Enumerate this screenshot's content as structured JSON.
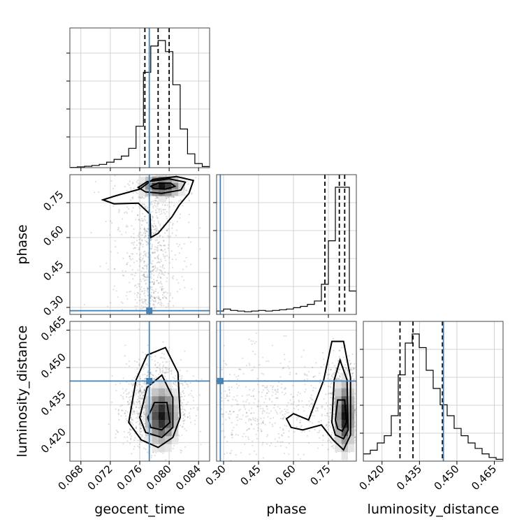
{
  "chart_data": {
    "type": "corner",
    "parameters": [
      "geocent_time",
      "phase",
      "luminosity_distance"
    ],
    "truths": {
      "geocent_time": 0.0773,
      "phase": 0.286,
      "luminosity_distance": 0.4446
    },
    "truth_color": "#4682b4",
    "grid": true,
    "axes": {
      "geocent_time": {
        "range": [
          0.0665,
          0.0855
        ],
        "ticks": [
          0.068,
          0.072,
          0.076,
          0.08,
          0.084
        ],
        "tick_labels": [
          "0.068",
          "0.072",
          "0.076",
          "0.080",
          "0.084"
        ]
      },
      "phase": {
        "range": [
          0.27,
          0.87
        ],
        "ticks": [
          0.3,
          0.45,
          0.6,
          0.75
        ],
        "tick_labels": [
          "0.30",
          "0.45",
          "0.60",
          "0.75"
        ]
      },
      "luminosity_distance": {
        "range": [
          0.4125,
          0.4685
        ],
        "ticks": [
          0.42,
          0.435,
          0.45,
          0.465
        ],
        "tick_labels": [
          "0.420",
          "0.435",
          "0.450",
          "0.465"
        ]
      }
    },
    "marginals": [
      {
        "parameter": "geocent_time",
        "bin_edges": [
          0.0665,
          0.0675,
          0.0685,
          0.0695,
          0.0705,
          0.0715,
          0.0725,
          0.0735,
          0.0745,
          0.0755,
          0.0765,
          0.0775,
          0.0785,
          0.0795,
          0.0805,
          0.0815,
          0.0825,
          0.0835,
          0.0845,
          0.0855
        ],
        "counts": [
          1,
          3,
          5,
          8,
          12,
          20,
          30,
          42,
          70,
          150,
          345,
          440,
          460,
          420,
          300,
          140,
          50,
          15,
          4
        ],
        "quantiles": [
          0.0767,
          0.0785,
          0.08
        ]
      },
      {
        "parameter": "phase",
        "bin_edges": [
          0.27,
          0.3,
          0.33,
          0.36,
          0.39,
          0.42,
          0.45,
          0.48,
          0.51,
          0.54,
          0.57,
          0.6,
          0.63,
          0.66,
          0.69,
          0.72,
          0.75,
          0.78,
          0.81,
          0.84,
          0.87
        ],
        "counts": [
          5,
          8,
          6,
          5,
          4,
          5,
          6,
          5,
          6,
          7,
          8,
          10,
          12,
          15,
          20,
          45,
          110,
          190,
          190,
          35
        ],
        "quantiles": [
          0.735,
          0.797,
          0.82
        ]
      },
      {
        "parameter": "luminosity_distance",
        "bin_edges": [
          0.4125,
          0.4153,
          0.4181,
          0.4209,
          0.4237,
          0.4265,
          0.4293,
          0.4321,
          0.4349,
          0.4377,
          0.4405,
          0.4433,
          0.4461,
          0.4489,
          0.4517,
          0.4545,
          0.4573,
          0.4601,
          0.4629,
          0.4657,
          0.4685
        ],
        "counts": [
          8,
          12,
          20,
          28,
          50,
          95,
          130,
          140,
          125,
          100,
          80,
          62,
          50,
          36,
          28,
          20,
          14,
          8,
          4,
          2
        ],
        "quantiles": [
          0.4272,
          0.4324,
          0.4442
        ]
      }
    ],
    "joint_densities": [
      {
        "x": "geocent_time",
        "y": "phase",
        "peak": [
          0.079,
          0.82
        ]
      },
      {
        "x": "geocent_time",
        "y": "luminosity_distance",
        "peak": [
          0.079,
          0.4305
        ]
      },
      {
        "x": "phase",
        "y": "luminosity_distance",
        "peak": [
          0.82,
          0.4305
        ]
      }
    ]
  }
}
